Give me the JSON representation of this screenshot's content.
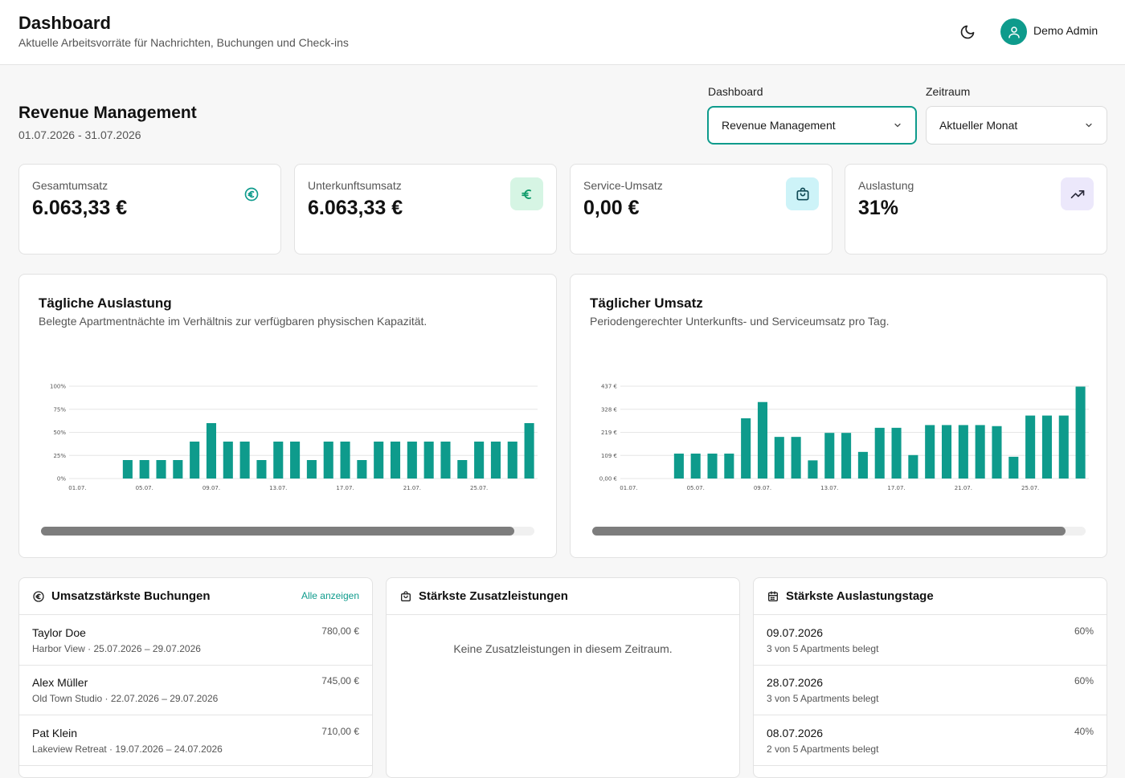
{
  "header": {
    "title": "Dashboard",
    "subtitle": "Aktuelle Arbeitsvorräte für Nachrichten, Buchungen und Check-ins",
    "user_name": "Demo Admin"
  },
  "section": {
    "title": "Revenue Management",
    "range": "01.07.2026 - 31.07.2026"
  },
  "filters": {
    "dashboard_label": "Dashboard",
    "dashboard_value": "Revenue Management",
    "period_label": "Zeitraum",
    "period_value": "Aktueller Monat"
  },
  "kpis": [
    {
      "label": "Gesamtumsatz",
      "value": "6.063,33 €",
      "icon": "euro-circle-icon"
    },
    {
      "label": "Unterkunftsumsatz",
      "value": "6.063,33 €",
      "icon": "euro-icon"
    },
    {
      "label": "Service-Umsatz",
      "value": "0,00 €",
      "icon": "shopping-bag-icon"
    },
    {
      "label": "Auslastung",
      "value": "31%",
      "icon": "trending-up-icon"
    }
  ],
  "charts": {
    "occupancy": {
      "title": "Tägliche Auslastung",
      "subtitle": "Belegte Apartmentnächte im Verhältnis zur verfügbaren physischen Kapazität."
    },
    "revenue": {
      "title": "Täglicher Umsatz",
      "subtitle": "Periodengerechter Unterkunfts- und Serviceumsatz pro Tag."
    }
  },
  "chart_data": [
    {
      "type": "bar",
      "title": "Tägliche Auslastung",
      "categories": [
        "01.07.",
        "02.07.",
        "03.07.",
        "04.07.",
        "05.07.",
        "06.07.",
        "07.07.",
        "08.07.",
        "09.07.",
        "10.07.",
        "11.07.",
        "12.07.",
        "13.07.",
        "14.07.",
        "15.07.",
        "16.07.",
        "17.07.",
        "18.07.",
        "19.07.",
        "20.07.",
        "21.07.",
        "22.07.",
        "23.07.",
        "24.07.",
        "25.07.",
        "26.07.",
        "27.07.",
        "28.07."
      ],
      "x_tick_labels": [
        "01.07.",
        "05.07.",
        "09.07.",
        "13.07.",
        "17.07.",
        "21.07.",
        "25.07."
      ],
      "y_tick_labels": [
        "0%",
        "25%",
        "50%",
        "75%",
        "100%"
      ],
      "values": [
        0,
        0,
        0,
        20,
        20,
        20,
        20,
        40,
        60,
        40,
        40,
        20,
        40,
        40,
        20,
        40,
        40,
        20,
        40,
        40,
        40,
        40,
        40,
        20,
        40,
        40,
        40,
        60
      ],
      "ylim": [
        0,
        100
      ],
      "grid": true,
      "color": "#0e9b8c"
    },
    {
      "type": "bar",
      "title": "Täglicher Umsatz",
      "categories": [
        "01.07.",
        "02.07.",
        "03.07.",
        "04.07.",
        "05.07.",
        "06.07.",
        "07.07.",
        "08.07.",
        "09.07.",
        "10.07.",
        "11.07.",
        "12.07.",
        "13.07.",
        "14.07.",
        "15.07.",
        "16.07.",
        "17.07.",
        "18.07.",
        "19.07.",
        "20.07.",
        "21.07.",
        "22.07.",
        "23.07.",
        "24.07.",
        "25.07.",
        "26.07.",
        "27.07.",
        "28.07."
      ],
      "x_tick_labels": [
        "01.07.",
        "05.07.",
        "09.07.",
        "13.07.",
        "17.07.",
        "21.07.",
        "25.07."
      ],
      "y_tick_labels": [
        "0,00 €",
        "109 €",
        "219 €",
        "328 €",
        "437 €"
      ],
      "values": [
        0,
        0,
        0,
        118,
        118,
        118,
        118,
        285,
        362,
        197,
        197,
        86,
        216,
        216,
        126,
        240,
        240,
        111,
        253,
        253,
        253,
        253,
        248,
        103,
        298,
        298,
        298,
        435
      ],
      "ylim": [
        0,
        437
      ],
      "grid": true,
      "color": "#0e9b8c"
    }
  ],
  "top_bookings": {
    "title": "Umsatzstärkste Buchungen",
    "link": "Alle anzeigen",
    "items": [
      {
        "name": "Taylor Doe",
        "detail": "Harbor View · 25.07.2026 – 29.07.2026",
        "amount": "780,00 €"
      },
      {
        "name": "Alex Müller",
        "detail": "Old Town Studio · 22.07.2026 – 29.07.2026",
        "amount": "745,00 €"
      },
      {
        "name": "Pat Klein",
        "detail": "Lakeview Retreat · 19.07.2026 – 24.07.2026",
        "amount": "710,00 €"
      }
    ]
  },
  "top_services": {
    "title": "Stärkste Zusatzleistungen",
    "empty": "Keine Zusatzleistungen in diesem Zeitraum."
  },
  "top_days": {
    "title": "Stärkste Auslastungstage",
    "items": [
      {
        "date": "09.07.2026",
        "detail": "3 von 5 Apartments belegt",
        "pct": "60%"
      },
      {
        "date": "28.07.2026",
        "detail": "3 von 5 Apartments belegt",
        "pct": "60%"
      },
      {
        "date": "08.07.2026",
        "detail": "2 von 5 Apartments belegt",
        "pct": "40%"
      }
    ]
  }
}
